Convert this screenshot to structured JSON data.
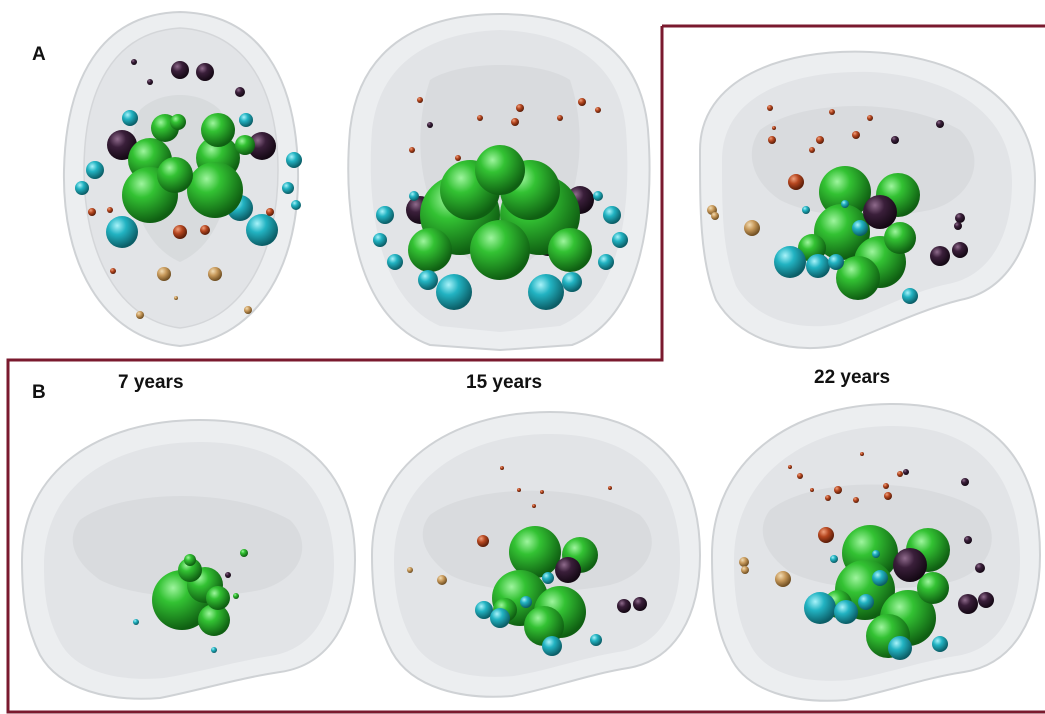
{
  "panel_a": {
    "label": "A"
  },
  "panel_b": {
    "label": "B",
    "ages": [
      "7 years",
      "15 years",
      "22 years"
    ]
  },
  "colors": {
    "frame": "#7a1a2e",
    "green": "#2fb32f",
    "cyan": "#27b6c4",
    "dark_purple": "#3a1f3a",
    "rust": "#b5461f",
    "tan": "#c7995a",
    "brain": "#d8dadd"
  },
  "views": [
    {
      "id": "a-axial",
      "type": "axial"
    },
    {
      "id": "a-coronal",
      "type": "coronal"
    },
    {
      "id": "a-sagittal",
      "type": "sagittal"
    },
    {
      "id": "b-7",
      "type": "sagittal"
    },
    {
      "id": "b-15",
      "type": "sagittal"
    },
    {
      "id": "b-22",
      "type": "sagittal"
    }
  ]
}
